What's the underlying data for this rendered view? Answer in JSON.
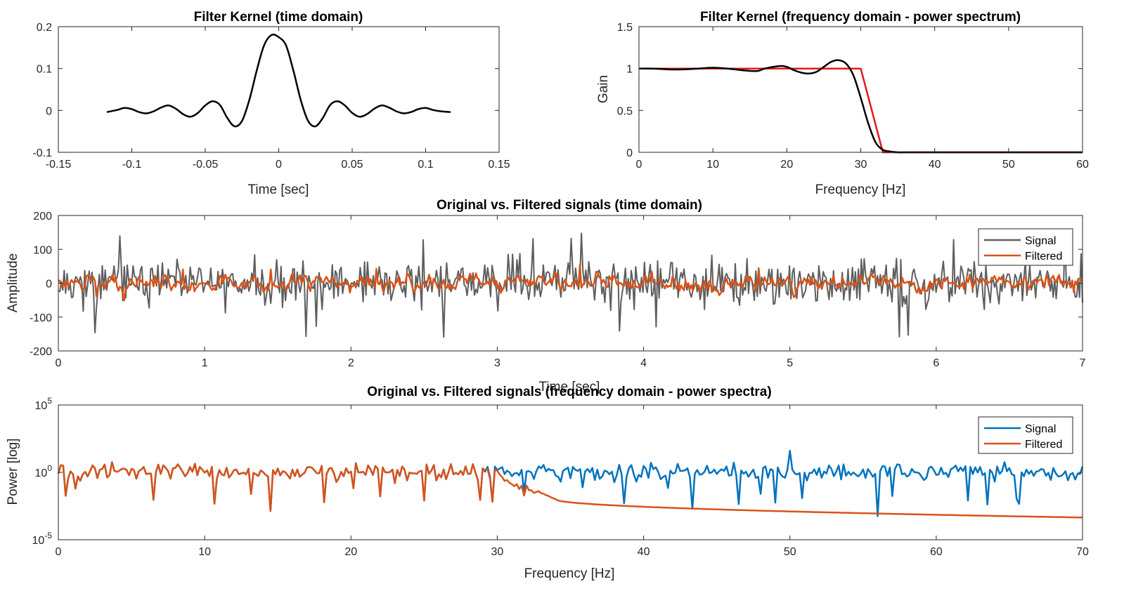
{
  "figure": {
    "background": "#ffffff"
  },
  "chart_data": [
    {
      "id": "kernel_time",
      "type": "line",
      "title": "Filter Kernel (time domain)",
      "xlabel": "Time [sec]",
      "ylabel": "",
      "xlim": [
        -0.15,
        0.15
      ],
      "ylim": [
        -0.1,
        0.2
      ],
      "xticks": [
        -0.15,
        -0.1,
        -0.05,
        0,
        0.05,
        0.1,
        0.15
      ],
      "xtick_labels": [
        "-0.15",
        "-0.1",
        "-0.05",
        "0",
        "0.05",
        "0.1",
        "0.15"
      ],
      "yticks": [
        -0.1,
        0,
        0.1,
        0.2
      ],
      "ytick_labels": [
        "-0.1",
        "0",
        "0.1",
        "0.2"
      ],
      "yscale": "linear",
      "grid": false,
      "series": [
        {
          "color": "#000000",
          "x": [
            -0.117,
            -0.11,
            -0.105,
            -0.1,
            -0.095,
            -0.09,
            -0.085,
            -0.08,
            -0.075,
            -0.07,
            -0.065,
            -0.06,
            -0.055,
            -0.05,
            -0.045,
            -0.04,
            -0.035,
            -0.03,
            -0.025,
            -0.02,
            -0.015,
            -0.01,
            -0.005,
            0,
            0.005,
            0.01,
            0.015,
            0.02,
            0.025,
            0.03,
            0.035,
            0.04,
            0.045,
            0.05,
            0.055,
            0.06,
            0.065,
            0.07,
            0.075,
            0.08,
            0.085,
            0.09,
            0.095,
            0.1,
            0.105,
            0.11,
            0.117
          ],
          "y": [
            -0.004,
            0.001,
            0.006,
            0.003,
            -0.004,
            -0.007,
            -0.002,
            0.007,
            0.012,
            0.004,
            -0.009,
            -0.015,
            -0.006,
            0.012,
            0.022,
            0.013,
            -0.018,
            -0.038,
            -0.025,
            0.025,
            0.095,
            0.155,
            0.18,
            0.175,
            0.155,
            0.095,
            0.025,
            -0.025,
            -0.038,
            -0.018,
            0.013,
            0.022,
            0.012,
            -0.006,
            -0.015,
            -0.009,
            0.004,
            0.012,
            0.007,
            -0.002,
            -0.007,
            -0.004,
            0.003,
            0.006,
            0.001,
            -0.002,
            -0.004
          ]
        }
      ]
    },
    {
      "id": "kernel_freq",
      "type": "line",
      "title": "Filter Kernel (frequency domain - power spectrum)",
      "xlabel": "Frequency [Hz]",
      "ylabel": "Gain",
      "xlim": [
        0,
        60
      ],
      "ylim": [
        0,
        1.5
      ],
      "xticks": [
        0,
        10,
        20,
        30,
        40,
        50,
        60
      ],
      "xtick_labels": [
        "0",
        "10",
        "20",
        "30",
        "40",
        "50",
        "60"
      ],
      "yticks": [
        0,
        0.5,
        1,
        1.5
      ],
      "ytick_labels": [
        "0",
        "0.5",
        "1",
        "1.5"
      ],
      "yscale": "linear",
      "grid": false,
      "series": [
        {
          "color": "#e41a1c",
          "x": [
            0,
            30,
            33,
            60
          ],
          "y": [
            1,
            1,
            0,
            0
          ]
        },
        {
          "color": "#000000",
          "x": [
            0,
            2,
            4,
            6,
            8,
            10,
            12,
            14,
            16,
            17,
            19,
            20,
            21,
            22,
            23,
            24,
            25,
            26,
            27,
            28,
            29,
            30,
            31,
            32,
            33,
            34,
            35,
            36,
            40,
            45,
            50,
            55,
            60
          ],
          "y": [
            1.0,
            1.0,
            0.99,
            0.99,
            1.0,
            1.01,
            1.0,
            0.98,
            0.97,
            1.0,
            1.03,
            1.02,
            0.98,
            0.95,
            0.94,
            0.96,
            1.02,
            1.08,
            1.1,
            1.06,
            0.92,
            0.65,
            0.35,
            0.12,
            0.03,
            0.01,
            0.0,
            0.0,
            0.0,
            0.0,
            0.0,
            0.0,
            0.0
          ]
        }
      ]
    },
    {
      "id": "signals_time",
      "type": "line",
      "title": "Original vs. Filtered signals (time domain)",
      "xlabel": "Time [sec]",
      "ylabel": "Amplitude",
      "xlim": [
        0,
        7
      ],
      "ylim": [
        -200,
        200
      ],
      "xticks": [
        0,
        1,
        2,
        3,
        4,
        5,
        6,
        7
      ],
      "xtick_labels": [
        "0",
        "1",
        "2",
        "3",
        "4",
        "5",
        "6",
        "7"
      ],
      "yticks": [
        -200,
        -100,
        0,
        100,
        200
      ],
      "ytick_labels": [
        "-200",
        "-100",
        "0",
        "100",
        "200"
      ],
      "yscale": "linear",
      "grid": false,
      "legend_position": "top-right",
      "series": [
        {
          "name": "Signal",
          "color": "#5e5e5e",
          "kind": "noise",
          "n": 700,
          "amp": 45,
          "peak": 165,
          "seed": 11
        },
        {
          "name": "Filtered",
          "color": "#d95319",
          "kind": "smooth",
          "n": 700,
          "amp": 16,
          "peak": 55,
          "seed": 29
        }
      ]
    },
    {
      "id": "signals_freq",
      "type": "line",
      "title": "Original vs. Filtered signals (frequency domain - power spectra)",
      "xlabel": "Frequency [Hz]",
      "ylabel": "Power [log]",
      "xlim": [
        0,
        70
      ],
      "ylim": [
        -5,
        5
      ],
      "xticks": [
        0,
        10,
        20,
        30,
        40,
        50,
        60,
        70
      ],
      "xtick_labels": [
        "0",
        "10",
        "20",
        "30",
        "40",
        "50",
        "60",
        "70"
      ],
      "yticks": [
        -5,
        0,
        5
      ],
      "ytick_labels": [
        "10^-5",
        "10^0",
        "10^5"
      ],
      "yscale": "log",
      "grid": false,
      "legend_position": "top-right",
      "notes": {
        "signal_peak_hz": 50,
        "signal_peak_log10_power": 1.6,
        "rolloff_start_hz": 29,
        "rolloff_end_hz": 34,
        "filtered_log10_at_34hz": -2.0,
        "filtered_log10_at_70hz": -3.35
      },
      "series": [
        {
          "name": "Signal",
          "color": "#0072bd"
        },
        {
          "name": "Filtered",
          "color": "#d95319"
        }
      ]
    }
  ]
}
